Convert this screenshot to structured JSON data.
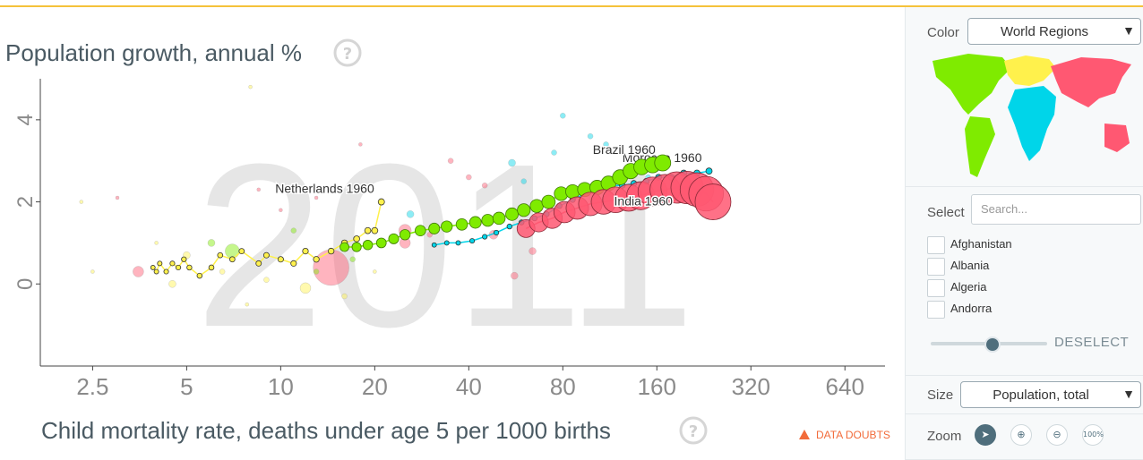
{
  "chart_data": {
    "type": "scatter",
    "big_year": "2011",
    "ylabel": "Population growth, annual %",
    "xlabel": "Child mortality rate, deaths under age 5 per 1000 births",
    "x_scale": "log2",
    "xlim": [
      1.7,
      860
    ],
    "ylim": [
      -2,
      5
    ],
    "x_ticks": [
      2.5,
      5,
      10,
      20,
      40,
      80,
      160,
      320,
      640
    ],
    "x_tick_labels": [
      "2.5",
      "5",
      "10",
      "20",
      "40",
      "80",
      "160",
      "320",
      "640"
    ],
    "y_ticks": [
      0,
      2,
      4
    ],
    "y_tick_labels": [
      "0",
      "2",
      "4"
    ],
    "trails": [
      {
        "name": "Netherlands",
        "label": "Netherlands 1960",
        "region": "europe",
        "points": [
          [
            21,
            2.0
          ],
          [
            20,
            1.3
          ],
          [
            19,
            1.3
          ],
          [
            17.5,
            1.1
          ],
          [
            16,
            1.0
          ],
          [
            14.5,
            0.8
          ],
          [
            13,
            0.6
          ],
          [
            12,
            0.8
          ],
          [
            11,
            0.5
          ],
          [
            10,
            0.6
          ],
          [
            9,
            0.7
          ],
          [
            8.5,
            0.5
          ],
          [
            7.5,
            0.8
          ],
          [
            7,
            0.6
          ],
          [
            6.4,
            0.7
          ],
          [
            6,
            0.4
          ],
          [
            5.5,
            0.2
          ],
          [
            5.1,
            0.4
          ],
          [
            4.9,
            0.6
          ],
          [
            4.7,
            0.4
          ],
          [
            4.5,
            0.5
          ],
          [
            4.3,
            0.3
          ],
          [
            4.1,
            0.5
          ],
          [
            4,
            0.3
          ],
          [
            3.9,
            0.4
          ]
        ]
      },
      {
        "name": "Brazil",
        "label": "Brazil 1960",
        "region": "america",
        "points": [
          [
            167,
            2.95
          ],
          [
            155,
            2.9
          ],
          [
            143,
            2.85
          ],
          [
            132,
            2.75
          ],
          [
            122,
            2.6
          ],
          [
            112,
            2.45
          ],
          [
            103,
            2.35
          ],
          [
            94,
            2.3
          ],
          [
            86,
            2.25
          ],
          [
            79,
            2.2
          ],
          [
            72,
            2.0
          ],
          [
            66,
            1.9
          ],
          [
            60,
            1.8
          ],
          [
            55,
            1.7
          ],
          [
            50,
            1.6
          ],
          [
            46,
            1.55
          ],
          [
            42,
            1.5
          ],
          [
            38,
            1.45
          ],
          [
            34,
            1.4
          ],
          [
            31,
            1.35
          ],
          [
            28,
            1.3
          ],
          [
            25,
            1.2
          ],
          [
            23,
            1.1
          ],
          [
            21,
            1.0
          ],
          [
            19,
            0.95
          ],
          [
            17.5,
            0.9
          ],
          [
            16,
            0.9
          ]
        ]
      },
      {
        "name": "Morocco",
        "label": "Morocco 1960",
        "region": "africa",
        "points": [
          [
            235,
            2.75
          ],
          [
            215,
            2.7
          ],
          [
            195,
            2.7
          ],
          [
            178,
            2.6
          ],
          [
            162,
            2.6
          ],
          [
            148,
            2.5
          ],
          [
            135,
            2.45
          ],
          [
            124,
            2.4
          ],
          [
            113,
            2.4
          ],
          [
            103,
            2.3
          ],
          [
            94,
            2.2
          ],
          [
            86,
            2.05
          ],
          [
            78,
            1.9
          ],
          [
            71,
            1.7
          ],
          [
            65,
            1.6
          ],
          [
            59,
            1.5
          ],
          [
            54,
            1.4
          ],
          [
            49,
            1.25
          ],
          [
            45,
            1.15
          ],
          [
            41,
            1.05
          ],
          [
            37,
            1.0
          ],
          [
            34,
            1.0
          ],
          [
            31,
            0.95
          ]
        ]
      },
      {
        "name": "India",
        "label": "India 1960",
        "region": "asia",
        "points": [
          [
            242,
            2.0
          ],
          [
            230,
            2.2
          ],
          [
            215,
            2.3
          ],
          [
            200,
            2.35
          ],
          [
            185,
            2.35
          ],
          [
            170,
            2.3
          ],
          [
            155,
            2.25
          ],
          [
            142,
            2.15
          ],
          [
            130,
            2.1
          ],
          [
            118,
            2.05
          ],
          [
            108,
            2.0
          ],
          [
            98,
            1.95
          ],
          [
            89,
            1.85
          ],
          [
            81,
            1.75
          ],
          [
            74,
            1.6
          ],
          [
            67,
            1.5
          ],
          [
            61,
            1.35
          ]
        ]
      }
    ],
    "scatter_points": [
      {
        "x": 12,
        "y": -0.1,
        "r": 6,
        "region": "europe"
      },
      {
        "x": 5,
        "y": 0.7,
        "r": 4,
        "region": "europe"
      },
      {
        "x": 7,
        "y": 0.8,
        "r": 8,
        "region": "america"
      },
      {
        "x": 14.5,
        "y": 0.4,
        "r": 20,
        "region": "asia"
      },
      {
        "x": 3.5,
        "y": 0.3,
        "r": 6,
        "region": "asia"
      },
      {
        "x": 4.5,
        "y": 0.0,
        "r": 4,
        "region": "europe"
      },
      {
        "x": 25,
        "y": 1.3,
        "r": 7,
        "region": "asia"
      },
      {
        "x": 25,
        "y": 1.0,
        "r": 6,
        "region": "asia"
      },
      {
        "x": 26,
        "y": 1.7,
        "r": 4,
        "region": "africa"
      },
      {
        "x": 55,
        "y": 2.95,
        "r": 4,
        "region": "africa"
      },
      {
        "x": 80,
        "y": 4.1,
        "r": 3,
        "region": "africa"
      },
      {
        "x": 64,
        "y": 0.8,
        "r": 4,
        "region": "asia"
      },
      {
        "x": 98,
        "y": 3.6,
        "r": 3,
        "region": "africa"
      },
      {
        "x": 30,
        "y": 1.2,
        "r": 3,
        "region": "asia"
      },
      {
        "x": 8,
        "y": 4.8,
        "r": 2,
        "region": "europe"
      },
      {
        "x": 2.3,
        "y": 2.0,
        "r": 2,
        "region": "europe"
      },
      {
        "x": 3,
        "y": 2.1,
        "r": 2,
        "region": "asia"
      },
      {
        "x": 2.5,
        "y": 0.3,
        "r": 2,
        "region": "europe"
      },
      {
        "x": 6,
        "y": 1.0,
        "r": 4,
        "region": "america"
      },
      {
        "x": 9,
        "y": 0.1,
        "r": 3,
        "region": "europe"
      },
      {
        "x": 11,
        "y": 1.3,
        "r": 3,
        "region": "america"
      },
      {
        "x": 16,
        "y": -0.3,
        "r": 3,
        "region": "europe"
      },
      {
        "x": 13,
        "y": 2.1,
        "r": 2,
        "region": "asia"
      },
      {
        "x": 18,
        "y": 3.4,
        "r": 2,
        "region": "asia"
      },
      {
        "x": 40,
        "y": 2.6,
        "r": 3,
        "region": "asia"
      },
      {
        "x": 48,
        "y": 1.2,
        "r": 5,
        "region": "asia"
      },
      {
        "x": 56,
        "y": 0.2,
        "r": 4,
        "region": "asia"
      },
      {
        "x": 60,
        "y": 2.5,
        "r": 3,
        "region": "africa"
      },
      {
        "x": 110,
        "y": 3.4,
        "r": 3,
        "region": "africa"
      },
      {
        "x": 140,
        "y": 3.0,
        "r": 3,
        "region": "africa"
      },
      {
        "x": 150,
        "y": 2.6,
        "r": 3,
        "region": "africa"
      },
      {
        "x": 75,
        "y": 3.2,
        "r": 3,
        "region": "africa"
      },
      {
        "x": 35,
        "y": 3.0,
        "r": 3,
        "region": "asia"
      },
      {
        "x": 45,
        "y": 2.4,
        "r": 3,
        "region": "asia"
      },
      {
        "x": 8.5,
        "y": 2.3,
        "r": 2,
        "region": "asia"
      },
      {
        "x": 7.8,
        "y": -0.5,
        "r": 2,
        "region": "europe"
      },
      {
        "x": 10,
        "y": 1.8,
        "r": 2,
        "region": "asia"
      },
      {
        "x": 6.5,
        "y": 0.3,
        "r": 3,
        "region": "europe"
      },
      {
        "x": 13,
        "y": 0.3,
        "r": 3,
        "region": "america"
      },
      {
        "x": 4,
        "y": 1.0,
        "r": 2,
        "region": "europe"
      },
      {
        "x": 17,
        "y": 0.6,
        "r": 3,
        "region": "america"
      },
      {
        "x": 20,
        "y": 0.3,
        "r": 2,
        "region": "europe"
      }
    ],
    "colors": {
      "europe": "#fff14c",
      "america": "#7feb00",
      "africa": "#00d5e9",
      "asia": "#ff5872"
    }
  },
  "data_doubts": "DATA DOUBTS",
  "help_icon": "?",
  "sidebar": {
    "color_label": "Color",
    "color_value": "World Regions",
    "select_label": "Select",
    "search_placeholder": "Search...",
    "countries": [
      "Afghanistan",
      "Albania",
      "Algeria",
      "Andorra"
    ],
    "deselect": "DESELECT",
    "size_label": "Size",
    "size_value": "Population, total",
    "zoom_label": "Zoom",
    "zoom_reset": "100%"
  }
}
